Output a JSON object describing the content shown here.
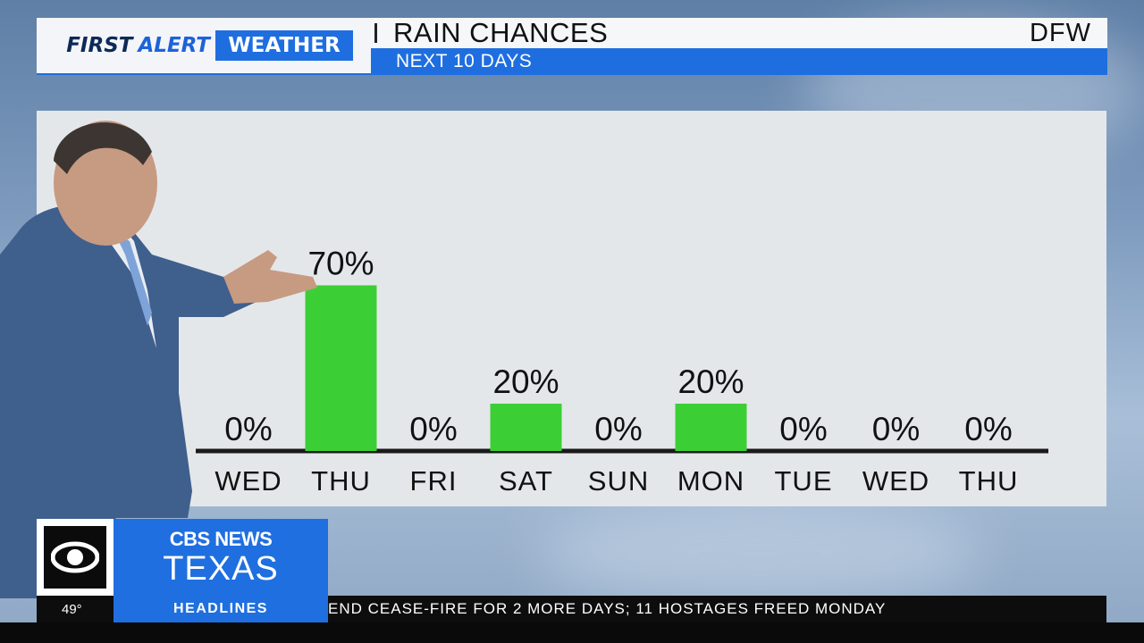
{
  "header": {
    "brand_first": "FIRST",
    "brand_alert": "ALERT",
    "brand_weather": "WEATHER",
    "title": "RAIN CHANCES",
    "subtitle": "NEXT 10 DAYS",
    "location": "DFW"
  },
  "chart_data": {
    "type": "bar",
    "title": "RAIN CHANCES",
    "subtitle": "NEXT 10 DAYS",
    "categories": [
      "WED",
      "THU",
      "FRI",
      "SAT",
      "SUN",
      "MON",
      "TUE",
      "WED",
      "THU"
    ],
    "values": [
      0,
      70,
      0,
      20,
      0,
      20,
      0,
      0,
      0
    ],
    "value_labels": [
      "0%",
      "70%",
      "0%",
      "20%",
      "0%",
      "20%",
      "0%",
      "0%",
      "0%"
    ],
    "unit": "%",
    "ylim": [
      0,
      100
    ],
    "grid": false,
    "bar_color": "#3ccf35"
  },
  "lower_third": {
    "logo_text": "CBS",
    "network_line1": "CBS NEWS",
    "network_line2": "TEXAS",
    "temperature": "49°",
    "headlines_label": "HEADLINES",
    "ticker_text": "END CEASE-FIRE FOR 2 MORE DAYS; 11 HOSTAGES FREED MONDAY"
  },
  "colors": {
    "accent_blue": "#1e6ee0",
    "panel_bg": "#e4e7ea",
    "bar_green": "#3ccf35"
  }
}
